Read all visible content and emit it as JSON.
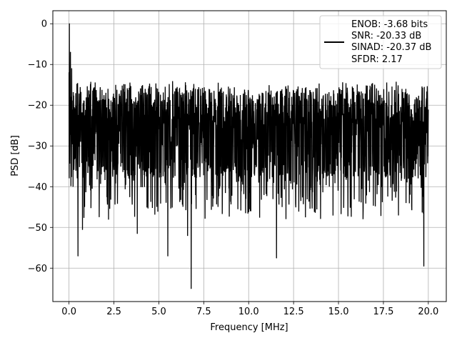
{
  "chart_data": {
    "type": "line",
    "title": "",
    "xlabel": "Frequency [MHz]",
    "ylabel": "PSD [dB]",
    "xlim": [
      -0.9,
      21.0
    ],
    "ylim": [
      -68.2,
      3.2
    ],
    "x_ticks": [
      0.0,
      2.5,
      5.0,
      7.5,
      10.0,
      12.5,
      15.0,
      17.5,
      20.0
    ],
    "x_tick_labels": [
      "0.0",
      "2.5",
      "5.0",
      "7.5",
      "10.0",
      "12.5",
      "15.0",
      "17.5",
      "20.0"
    ],
    "y_ticks": [
      0,
      -10,
      -20,
      -30,
      -40,
      -50,
      -60
    ],
    "y_tick_labels": [
      "0",
      "−10",
      "−20",
      "−30",
      "−40",
      "−50",
      "−60"
    ],
    "grid": true,
    "legend_position": "top-right",
    "line_color": "#000000",
    "series": [
      {
        "name": "ENOB: -3.68 bits\nSNR: -20.33 dB\nSINAD: -20.37 dB\nSFDR: 2.17",
        "legend_lines": [
          "ENOB: -3.68 bits",
          "SNR: -20.33 dB",
          "SINAD: -20.37 dB",
          "SFDR: 2.17"
        ],
        "x_range": [
          0.0,
          20.0
        ],
        "num_points": 2048,
        "spectrum_noise_floor_db": -24,
        "spectrum_upper_envelope_db": -14,
        "spectrum_lower_envelope_db": -45,
        "notable_points": [
          {
            "x": 0.0,
            "y": -12
          },
          {
            "x": 0.02,
            "y": 0.0
          },
          {
            "x": 0.08,
            "y": -7
          },
          {
            "x": 0.15,
            "y": -11
          },
          {
            "x": 0.5,
            "y": -57
          },
          {
            "x": 0.75,
            "y": -50.5
          },
          {
            "x": 2.2,
            "y": -48
          },
          {
            "x": 3.8,
            "y": -51.5
          },
          {
            "x": 5.5,
            "y": -57
          },
          {
            "x": 6.6,
            "y": -52
          },
          {
            "x": 6.8,
            "y": -65
          },
          {
            "x": 11.55,
            "y": -57.5
          },
          {
            "x": 19.75,
            "y": -59.5
          }
        ]
      }
    ]
  }
}
